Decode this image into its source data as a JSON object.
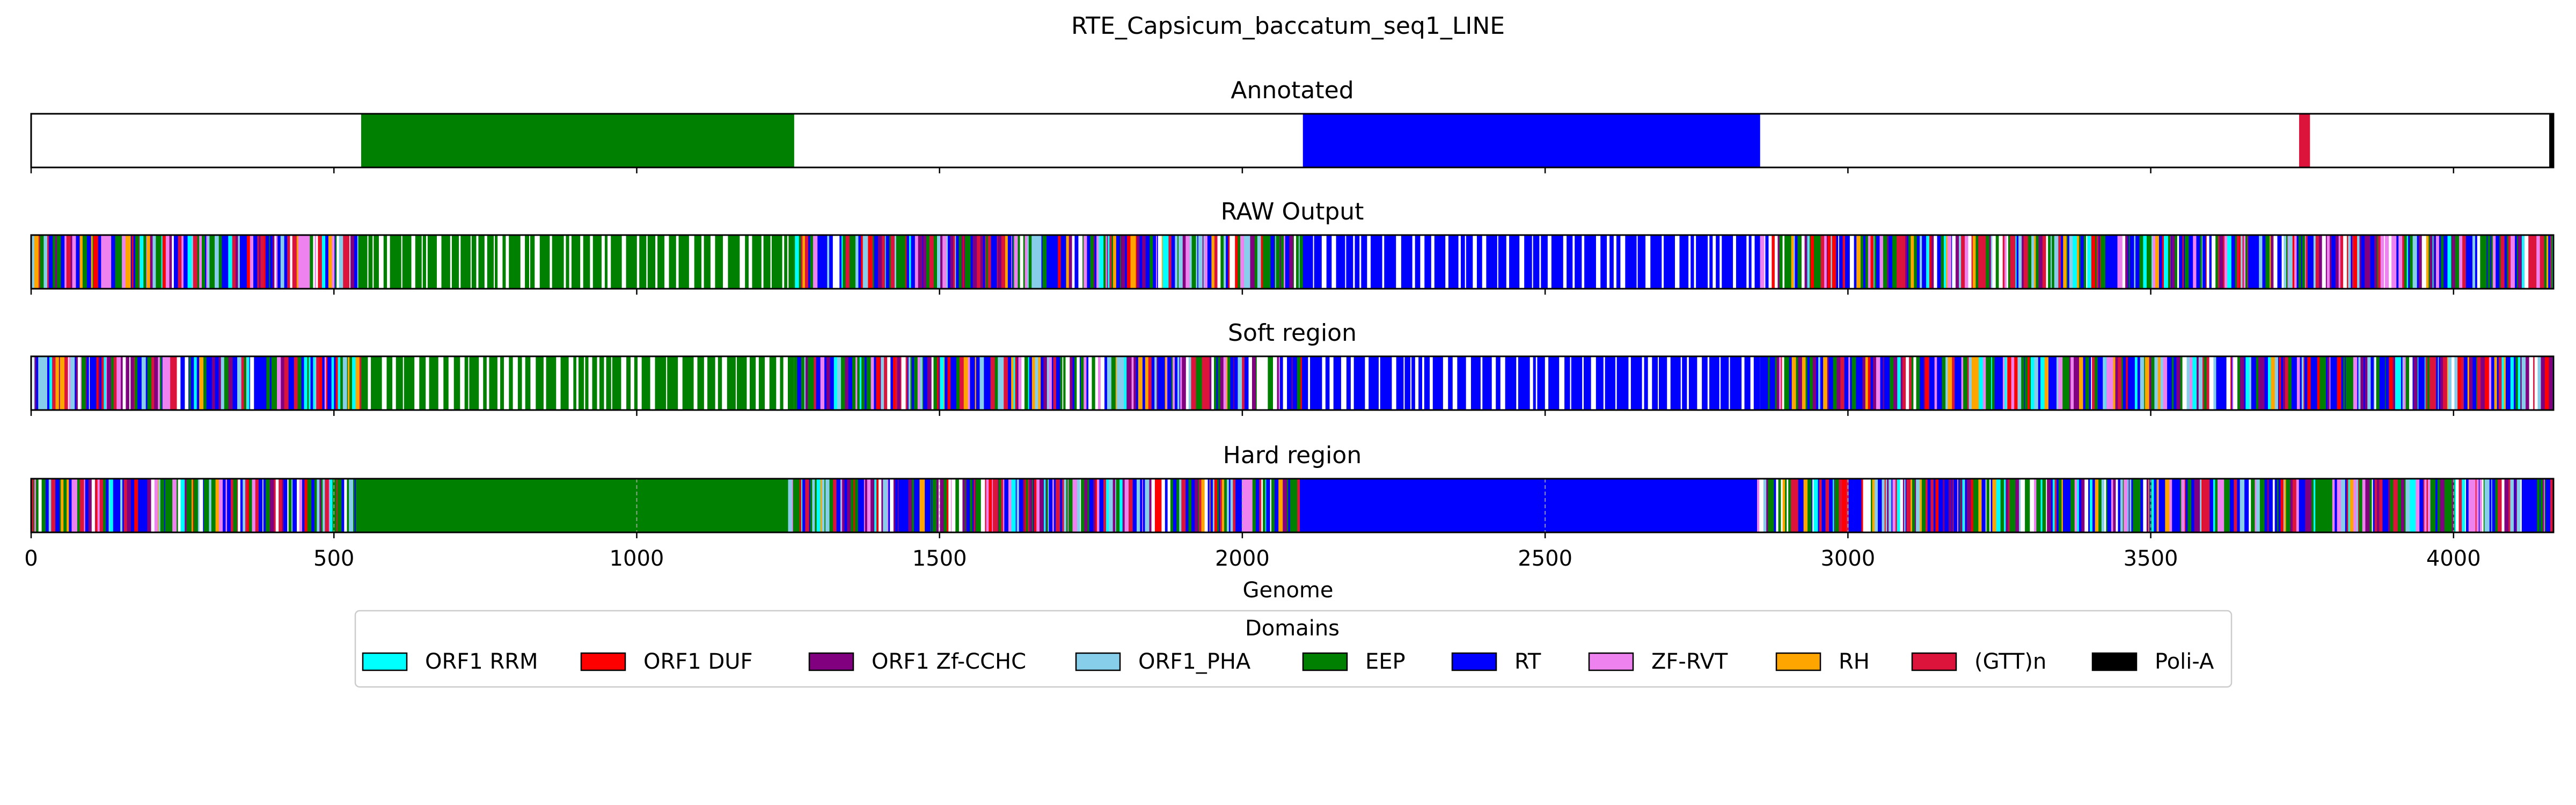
{
  "chart_data": {
    "type": "bar",
    "title": "RTE_Capsicum_baccatum_seq1_LINE",
    "xlabel": "Genome",
    "xlim": [
      0,
      4165
    ],
    "xticks": [
      0,
      500,
      1000,
      1500,
      2000,
      2500,
      3000,
      3500,
      4000
    ],
    "x_tick_labels": [
      "0",
      "500",
      "1000",
      "1500",
      "2000",
      "2500",
      "3000",
      "3500",
      "4000"
    ],
    "legend": {
      "title": "Domains",
      "placement": "bottom-center",
      "entries": [
        {
          "name": "ORF1 RRM",
          "color": "#00ffff"
        },
        {
          "name": "ORF1 DUF",
          "color": "#ff0000"
        },
        {
          "name": "ORF1 Zf-CCHC",
          "color": "#800080"
        },
        {
          "name": "ORF1_PHA",
          "color": "#87ceeb"
        },
        {
          "name": "EEP",
          "color": "#008000"
        },
        {
          "name": "RT",
          "color": "#0000ff"
        },
        {
          "name": "ZF-RVT",
          "color": "#ee82ee"
        },
        {
          "name": "RH",
          "color": "#ffa500"
        },
        {
          "name": "(GTT)n",
          "color": "#dc143c"
        },
        {
          "name": "Poli-A",
          "color": "#000000"
        }
      ]
    },
    "tracks": [
      {
        "title": "Annotated",
        "segments": [
          {
            "domain": "EEP",
            "start": 545,
            "end": 1260
          },
          {
            "domain": "RT",
            "start": 2100,
            "end": 2855
          },
          {
            "domain": "(GTT)n",
            "start": 3745,
            "end": 3763
          },
          {
            "domain": "Poli-A",
            "start": 4158,
            "end": 4165
          }
        ]
      },
      {
        "title": "RAW Output",
        "regions": [
          {
            "kind": "mixed",
            "start": 0,
            "end": 545
          },
          {
            "kind": "sparse",
            "domain": "EEP",
            "start": 545,
            "end": 1260
          },
          {
            "kind": "mixed",
            "start": 1260,
            "end": 2100
          },
          {
            "kind": "sparse",
            "domain": "RT",
            "start": 2100,
            "end": 2855
          },
          {
            "kind": "mixed",
            "start": 2855,
            "end": 4165
          }
        ]
      },
      {
        "title": "Soft region",
        "regions": [
          {
            "kind": "mixed",
            "start": 0,
            "end": 545
          },
          {
            "kind": "sparse",
            "domain": "EEP",
            "start": 545,
            "end": 1260
          },
          {
            "kind": "mixed",
            "start": 1260,
            "end": 2100
          },
          {
            "kind": "sparse",
            "domain": "RT",
            "start": 2100,
            "end": 2855
          },
          {
            "kind": "mixed",
            "start": 2855,
            "end": 4165
          }
        ]
      },
      {
        "title": "Hard region",
        "grid": true,
        "regions": [
          {
            "kind": "mixed",
            "start": 0,
            "end": 540
          },
          {
            "kind": "solid",
            "domain": "EEP",
            "start": 540,
            "end": 1250
          },
          {
            "kind": "mixed",
            "start": 1250,
            "end": 2095
          },
          {
            "kind": "solid",
            "domain": "RT",
            "start": 2095,
            "end": 2850
          },
          {
            "kind": "mixed",
            "start": 2850,
            "end": 4165
          }
        ]
      }
    ]
  }
}
